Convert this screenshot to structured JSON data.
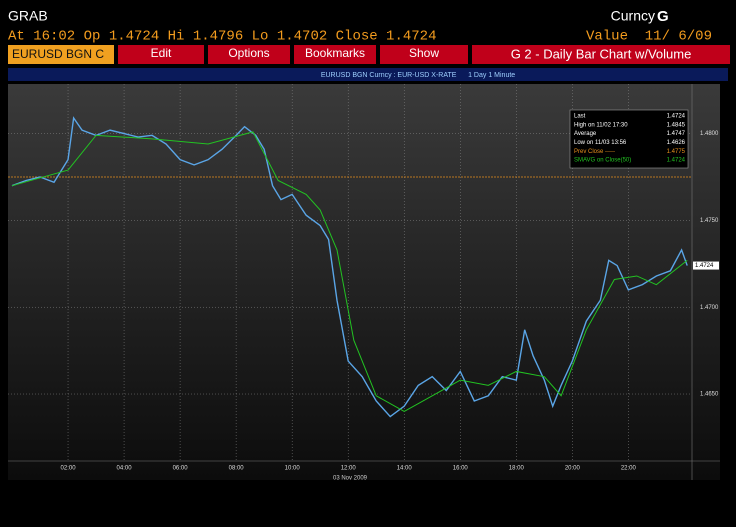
{
  "header": {
    "left": "GRAB",
    "security": "Curncy",
    "function_key": "G",
    "quote": "At 16:02 Op 1.4724 Hi 1.4796 Lo 1.4702 Close 1.4724",
    "value": "Value  11/ 6/09"
  },
  "toolbar": {
    "ticker": "EURUSD BGN C",
    "buttons": [
      "Edit",
      "Options",
      "Bookmarks",
      "Show"
    ],
    "screen": "G 2 - Daily Bar Chart w/Volume"
  },
  "chart_data": {
    "type": "line",
    "title": "EURUSD BGN Curncy : EUR-USD X-RATE      1 Day 1 Minute",
    "x_label": "03 Nov 2009",
    "x": [
      0,
      0.5,
      1,
      1.5,
      2,
      2.2,
      2.5,
      3,
      3.5,
      4,
      4.5,
      5,
      5.5,
      6,
      6.5,
      7,
      7.5,
      8,
      8.3,
      8.7,
      9,
      9.3,
      9.6,
      10,
      10.5,
      11,
      11.3,
      11.6,
      12,
      12.5,
      13,
      13.5,
      14,
      14.5,
      15,
      15.5,
      16,
      16.5,
      17,
      17.5,
      18,
      18.3,
      18.6,
      19,
      19.3,
      19.6,
      20,
      20.5,
      21,
      21.3,
      21.6,
      22,
      22.5,
      23,
      23.5,
      23.9,
      24.1
    ],
    "series": [
      {
        "name": "Last",
        "color": "#5aa5e6",
        "values": [
          1.477,
          1.4773,
          1.4775,
          1.4772,
          1.4785,
          1.4809,
          1.4802,
          1.4799,
          1.4802,
          1.48,
          1.4798,
          1.4799,
          1.4794,
          1.4785,
          1.4782,
          1.4785,
          1.4791,
          1.4799,
          1.4804,
          1.4799,
          1.4791,
          1.477,
          1.4762,
          1.4765,
          1.4753,
          1.4747,
          1.4739,
          1.4704,
          1.4669,
          1.466,
          1.4646,
          1.4637,
          1.4643,
          1.4655,
          1.466,
          1.4652,
          1.4663,
          1.4646,
          1.4649,
          1.466,
          1.4658,
          1.4687,
          1.4672,
          1.4658,
          1.4643,
          1.4655,
          1.4669,
          1.4692,
          1.4704,
          1.4727,
          1.4724,
          1.471,
          1.4713,
          1.4718,
          1.4721,
          1.4733,
          1.4724
        ]
      },
      {
        "name": "SMAVG on Close(50)",
        "color": "#22c322",
        "x": [
          0,
          2,
          3,
          5,
          7,
          8.6,
          9.5,
          10.5,
          11,
          11.6,
          12.2,
          13,
          14,
          15,
          16,
          17,
          18,
          19,
          19.6,
          20.5,
          21.5,
          22.3,
          23,
          24.1
        ],
        "values": [
          1.477,
          1.4779,
          1.4799,
          1.4797,
          1.4794,
          1.4801,
          1.4773,
          1.4765,
          1.4756,
          1.4733,
          1.4681,
          1.4649,
          1.464,
          1.4649,
          1.4658,
          1.4655,
          1.4663,
          1.466,
          1.4649,
          1.4687,
          1.4716,
          1.4718,
          1.4713,
          1.4727
        ]
      }
    ],
    "reference_line": {
      "name": "Prev Close",
      "value": 1.4775,
      "color": "#e8901e"
    },
    "last_tag": 1.4724,
    "xlim": [
      0,
      24.2
    ],
    "ylim": [
      1.4612,
      1.4828
    ],
    "xticks": [
      {
        "value": 2,
        "label": "02:00"
      },
      {
        "value": 4,
        "label": "04:00"
      },
      {
        "value": 6,
        "label": "06:00"
      },
      {
        "value": 8,
        "label": "08:00"
      },
      {
        "value": 10,
        "label": "10:00"
      },
      {
        "value": 12,
        "label": "12:00"
      },
      {
        "value": 14,
        "label": "14:00"
      },
      {
        "value": 16,
        "label": "16:00"
      },
      {
        "value": 18,
        "label": "18:00"
      },
      {
        "value": 20,
        "label": "20:00"
      },
      {
        "value": 22,
        "label": "22:00"
      }
    ],
    "yticks": [
      {
        "value": 1.465,
        "label": "1.4650"
      },
      {
        "value": 1.47,
        "label": "1.4700"
      },
      {
        "value": 1.475,
        "label": "1.4750"
      },
      {
        "value": 1.48,
        "label": "1.4800"
      }
    ],
    "grid": true,
    "stats": [
      {
        "label": "Last",
        "value": 1.4724,
        "color": "#ffffff"
      },
      {
        "label": "High on  11/02 17:30",
        "value": 1.4845,
        "color": "#ffffff"
      },
      {
        "label": "Average",
        "value": 1.4747,
        "color": "#ffffff"
      },
      {
        "label": "Low on  11/03 13:56",
        "value": 1.4626,
        "color": "#ffffff"
      },
      {
        "label": "Prev Close -----",
        "value": 1.4775,
        "color": "#e8901e"
      },
      {
        "label": "SMAVG on Close(50)",
        "value": 1.4724,
        "color": "#22c322"
      }
    ]
  }
}
